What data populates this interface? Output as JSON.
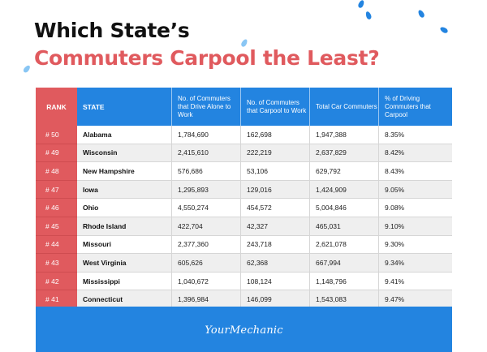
{
  "title": {
    "line1": "Which State’s",
    "line2": "Commuters Carpool the Least?"
  },
  "colors": {
    "accent_red": "#e05a5e",
    "accent_blue": "#2384e0",
    "title_dark": "#111111"
  },
  "table": {
    "headers": {
      "rank": "RANK",
      "state": "STATE",
      "alone": "No. of Commuters that Drive Alone to Work",
      "carpool": "No. of Commuters that Carpool to Work",
      "total": "Total Car Commuters",
      "pct": "% of Driving Commuters that Carpool"
    },
    "rows": [
      {
        "rank": "# 50",
        "state": "Alabama",
        "alone": "1,784,690",
        "carpool": "162,698",
        "total": "1,947,388",
        "pct": "8.35%"
      },
      {
        "rank": "# 49",
        "state": "Wisconsin",
        "alone": "2,415,610",
        "carpool": "222,219",
        "total": "2,637,829",
        "pct": "8.42%"
      },
      {
        "rank": "# 48",
        "state": "New Hampshire",
        "alone": "576,686",
        "carpool": "53,106",
        "total": "629,792",
        "pct": "8.43%"
      },
      {
        "rank": "# 47",
        "state": "Iowa",
        "alone": "1,295,893",
        "carpool": "129,016",
        "total": "1,424,909",
        "pct": "9.05%"
      },
      {
        "rank": "# 46",
        "state": "Ohio",
        "alone": "4,550,274",
        "carpool": "454,572",
        "total": "5,004,846",
        "pct": "9.08%"
      },
      {
        "rank": "# 45",
        "state": "Rhode Island",
        "alone": "422,704",
        "carpool": "42,327",
        "total": "465,031",
        "pct": "9.10%"
      },
      {
        "rank": "# 44",
        "state": "Missouri",
        "alone": "2,377,360",
        "carpool": "243,718",
        "total": "2,621,078",
        "pct": "9.30%"
      },
      {
        "rank": "# 43",
        "state": "West Virginia",
        "alone": "605,626",
        "carpool": "62,368",
        "total": "667,994",
        "pct": "9.34%"
      },
      {
        "rank": "# 42",
        "state": "Mississippi",
        "alone": "1,040,672",
        "carpool": "108,124",
        "total": "1,148,796",
        "pct": "9.41%"
      },
      {
        "rank": "# 41",
        "state": "Connecticut",
        "alone": "1,396,984",
        "carpool": "146,099",
        "total": "1,543,083",
        "pct": "9.47%"
      }
    ]
  },
  "footer": {
    "brand": "YourMechanic",
    "logo_icon": "yourmechanic-logo"
  },
  "decorations": {
    "icon": "raindrop-icon"
  }
}
